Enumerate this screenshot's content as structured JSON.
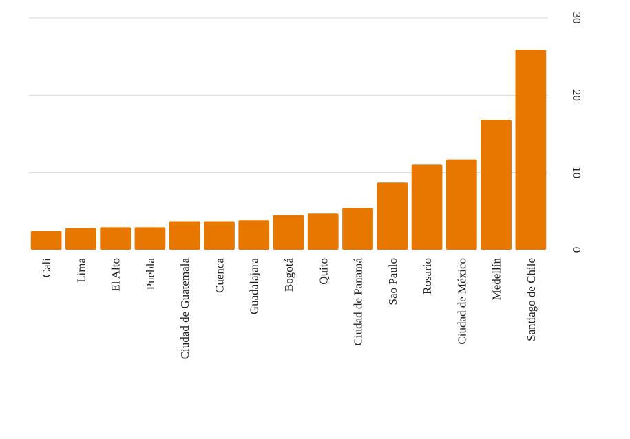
{
  "chart_data": {
    "type": "bar",
    "orientation": "vertical",
    "title": "",
    "xlabel": "",
    "ylabel": "",
    "y_axis_position": "right",
    "ylim": [
      0,
      30
    ],
    "yticks": [
      0,
      10,
      20,
      30
    ],
    "grid": true,
    "bar_color": "#E87700",
    "categories": [
      "Cali",
      "Lima",
      "El Alto",
      "Puebla",
      "Ciudad de Guatemala",
      "Cuenca",
      "Guadalajara",
      "Bogotá",
      "Quito",
      "Ciudad de Panamá",
      "Sao Paulo",
      "Rosario",
      "Ciudad de México",
      "Medellín",
      "Santiago de Chile"
    ],
    "values": [
      2.4,
      2.8,
      2.9,
      2.9,
      3.7,
      3.7,
      3.8,
      4.5,
      4.7,
      5.4,
      8.7,
      11.0,
      11.7,
      16.8,
      25.9
    ]
  }
}
